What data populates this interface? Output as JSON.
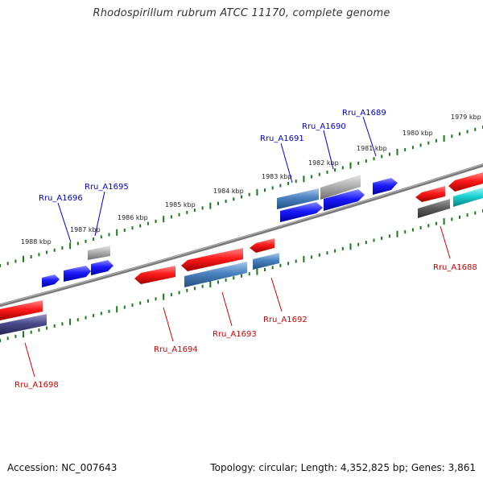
{
  "title": "Rhodospirillum rubrum ATCC 11170, complete genome",
  "accession_text": "Accession: NC_007643",
  "summary_text": "Topology: circular; Length: 4,352,825 bp; Genes: 3,861",
  "colors": {
    "backbone": "#808080",
    "tick": "#1a7a1a",
    "forward_label": "#0000cc",
    "reverse_label": "#cc0000",
    "red": "#ff1a1a",
    "blue": "#1a1aff",
    "steel": "#4a82c0",
    "gray": "#b0b0b0",
    "dark_gray": "#606060",
    "cyan": "#19d2d2",
    "navy": "#4a4a8c"
  },
  "scale_labels": [
    "1979 kbp",
    "1980 kbp",
    "1981 kbp",
    "1982 kbp",
    "1983 kbp",
    "1984 kbp",
    "1985 kbp",
    "1986 kbp",
    "1987 kbp",
    "1988 kbp"
  ],
  "forward_genes": [
    {
      "label": "Rru_A1689",
      "color": "forward_label"
    },
    {
      "label": "Rru_A1690",
      "color": "forward_label"
    },
    {
      "label": "Rru_A1691",
      "color": "forward_label"
    },
    {
      "label": "Rru_A1695",
      "color": "forward_label"
    },
    {
      "label": "Rru_A1696",
      "color": "forward_label"
    }
  ],
  "reverse_genes": [
    {
      "label": "Rru_A1688",
      "color": "reverse_label"
    },
    {
      "label": "Rru_A1692",
      "color": "reverse_label"
    },
    {
      "label": "Rru_A1693",
      "color": "reverse_label"
    },
    {
      "label": "Rru_A1694",
      "color": "reverse_label"
    },
    {
      "label": "Rru_A1698",
      "color": "reverse_label"
    }
  ]
}
